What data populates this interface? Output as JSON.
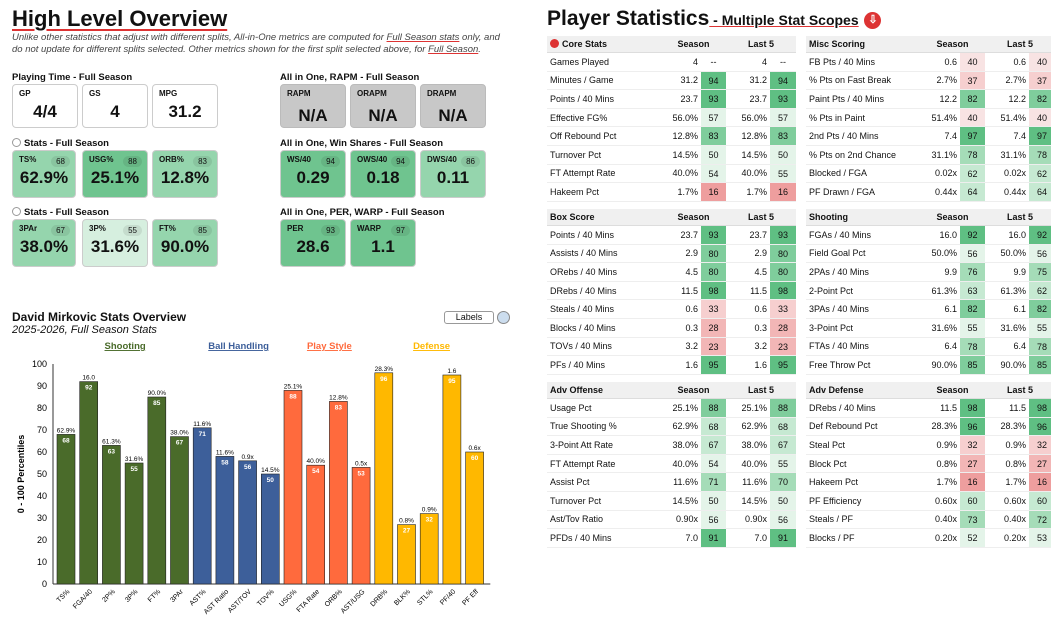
{
  "left": {
    "title": "High Level Overview",
    "note_pre": "Unlike other statistics that adjust with different splits, All-in-One metrics are computed for ",
    "note_link1": "Full Season stats",
    "note_mid": " only, and do not update for different splits selected. Other metrics shown for the first split selected above, for ",
    "note_link2": "Full Season",
    "note_end": "."
  },
  "sections": {
    "playing": "Playing Time - Full Season",
    "stats1": "Stats - Full Season",
    "stats2": "Stats - Full Season",
    "rapm": "All in One, RAPM - Full Season",
    "ws": "All in One, Win Shares - Full Season",
    "per": "All in One, PER, WARP - Full Season"
  },
  "cards": {
    "gp": {
      "label": "GP",
      "value": "4/4"
    },
    "gs": {
      "label": "GS",
      "value": "4"
    },
    "mpg": {
      "label": "MPG",
      "value": "31.2"
    },
    "ts": {
      "label": "TS%",
      "value": "62.9%",
      "pct": "68"
    },
    "usg": {
      "label": "USG%",
      "value": "25.1%",
      "pct": "88"
    },
    "orb": {
      "label": "ORB%",
      "value": "12.8%",
      "pct": "83"
    },
    "tpar": {
      "label": "3PAr",
      "value": "38.0%",
      "pct": "67"
    },
    "tpp": {
      "label": "3P%",
      "value": "31.6%",
      "pct": "55"
    },
    "ftp": {
      "label": "FT%",
      "value": "90.0%",
      "pct": "85"
    },
    "rapm": {
      "label": "RAPM",
      "value": "N/A"
    },
    "orapm": {
      "label": "ORAPM",
      "value": "N/A"
    },
    "drapm": {
      "label": "DRAPM",
      "value": "N/A"
    },
    "ws40": {
      "label": "WS/40",
      "value": "0.29",
      "pct": "94"
    },
    "ows40": {
      "label": "OWS/40",
      "value": "0.18",
      "pct": "94"
    },
    "dws40": {
      "label": "DWS/40",
      "value": "0.11",
      "pct": "86"
    },
    "per": {
      "label": "PER",
      "value": "28.6",
      "pct": "93"
    },
    "warp": {
      "label": "WARP",
      "value": "1.1",
      "pct": "97"
    }
  },
  "chart_ui": {
    "title": "David Mirkovic Stats Overview",
    "subtitle": "2025-2026, Full Season Stats",
    "labels_button": "Labels"
  },
  "chart_data": {
    "type": "bar",
    "ylabel": "0 - 100 Percentiles",
    "ylim": [
      0,
      100
    ],
    "yticks": [
      0,
      10,
      20,
      30,
      40,
      50,
      60,
      70,
      80,
      90,
      100
    ],
    "groups": [
      {
        "name": "Shooting",
        "color": "#4a6b2a"
      },
      {
        "name": "Ball Handling",
        "color": "#3d5f9a"
      },
      {
        "name": "Play Style",
        "color": "#ff6a3d"
      },
      {
        "name": "Defense",
        "color": "#ffb800"
      }
    ],
    "bars": [
      {
        "cat": "TS%",
        "value": 68,
        "label": "62.9%",
        "group": 0
      },
      {
        "cat": "FGA/40",
        "value": 92,
        "label": "16.0",
        "group": 0
      },
      {
        "cat": "2P%",
        "value": 63,
        "label": "61.3%",
        "group": 0
      },
      {
        "cat": "3P%",
        "value": 55,
        "label": "31.6%",
        "group": 0
      },
      {
        "cat": "FT%",
        "value": 85,
        "label": "90.0%",
        "group": 0
      },
      {
        "cat": "3PAr",
        "value": 67,
        "label": "38.0%",
        "group": 0
      },
      {
        "cat": "AST%",
        "value": 71,
        "label": "11.6%",
        "group": 1
      },
      {
        "cat": "AST Ratio",
        "value": 58,
        "label": "11.6%",
        "group": 1
      },
      {
        "cat": "AST/TOV",
        "value": 56,
        "label": "0.9x",
        "group": 1
      },
      {
        "cat": "TOV%",
        "value": 50,
        "label": "14.5%",
        "group": 1
      },
      {
        "cat": "USG%",
        "value": 88,
        "label": "25.1%",
        "group": 2
      },
      {
        "cat": "FTA Rate",
        "value": 54,
        "label": "40.0%",
        "group": 2
      },
      {
        "cat": "ORB%",
        "value": 83,
        "label": "12.8%",
        "group": 2
      },
      {
        "cat": "AST/USG",
        "value": 53,
        "label": "0.5x",
        "group": 2
      },
      {
        "cat": "DRB%",
        "value": 96,
        "label": "28.3%",
        "group": 3
      },
      {
        "cat": "BLK%",
        "value": 27,
        "label": "0.8%",
        "group": 3
      },
      {
        "cat": "STL%",
        "value": 32,
        "label": "0.9%",
        "group": 3
      },
      {
        "cat": "PF/40",
        "value": 95,
        "label": "1.6",
        "group": 3
      },
      {
        "cat": "PF Eff",
        "value": 60,
        "label": "0.6x",
        "group": 3
      }
    ]
  },
  "right": {
    "title": "Player Statistics",
    "subtitle": " - Multiple Stat Scopes",
    "icon": "⇩"
  },
  "tables": [
    {
      "title": "Core Stats",
      "col1": "Season",
      "col2": "Last 5",
      "rows": [
        [
          "Games Played",
          "4",
          "--",
          "4",
          "--"
        ],
        [
          "Minutes / Game",
          "31.2",
          "94",
          "31.2",
          "94"
        ],
        [
          "Points / 40 Mins",
          "23.7",
          "93",
          "23.7",
          "93"
        ],
        [
          "Effective FG%",
          "56.0%",
          "57",
          "56.0%",
          "57"
        ],
        [
          "Off Rebound Pct",
          "12.8%",
          "83",
          "12.8%",
          "83"
        ],
        [
          "Turnover Pct",
          "14.5%",
          "50",
          "14.5%",
          "50"
        ],
        [
          "FT Attempt Rate",
          "40.0%",
          "54",
          "40.0%",
          "55"
        ],
        [
          "Hakeem Pct",
          "1.7%",
          "16",
          "1.7%",
          "16"
        ]
      ]
    },
    {
      "title": "Misc Scoring",
      "col1": "Season",
      "col2": "Last 5",
      "rows": [
        [
          "FB Pts / 40 Mins",
          "0.6",
          "40",
          "0.6",
          "40"
        ],
        [
          "% Pts on Fast Break",
          "2.7%",
          "37",
          "2.7%",
          "37"
        ],
        [
          "Paint Pts / 40 Mins",
          "12.2",
          "82",
          "12.2",
          "82"
        ],
        [
          "% Pts in Paint",
          "51.4%",
          "40",
          "51.4%",
          "40"
        ],
        [
          "2nd Pts / 40 Mins",
          "7.4",
          "97",
          "7.4",
          "97"
        ],
        [
          "% Pts on 2nd Chance",
          "31.1%",
          "78",
          "31.1%",
          "78"
        ],
        [
          "Blocked / FGA",
          "0.02x",
          "62",
          "0.02x",
          "62"
        ],
        [
          "PF Drawn / FGA",
          "0.44x",
          "64",
          "0.44x",
          "64"
        ]
      ]
    },
    {
      "title": "Box Score",
      "col1": "Season",
      "col2": "Last 5",
      "rows": [
        [
          "Points / 40 Mins",
          "23.7",
          "93",
          "23.7",
          "93"
        ],
        [
          "Assists / 40 Mins",
          "2.9",
          "80",
          "2.9",
          "80"
        ],
        [
          "ORebs / 40 Mins",
          "4.5",
          "80",
          "4.5",
          "80"
        ],
        [
          "DRebs / 40 Mins",
          "11.5",
          "98",
          "11.5",
          "98"
        ],
        [
          "Steals / 40 Mins",
          "0.6",
          "33",
          "0.6",
          "33"
        ],
        [
          "Blocks / 40 Mins",
          "0.3",
          "28",
          "0.3",
          "28"
        ],
        [
          "TOVs / 40 Mins",
          "3.2",
          "23",
          "3.2",
          "23"
        ],
        [
          "PFs / 40 Mins",
          "1.6",
          "95",
          "1.6",
          "95"
        ]
      ]
    },
    {
      "title": "Shooting",
      "col1": "Season",
      "col2": "Last 5",
      "rows": [
        [
          "FGAs / 40 Mins",
          "16.0",
          "92",
          "16.0",
          "92"
        ],
        [
          "Field Goal Pct",
          "50.0%",
          "56",
          "50.0%",
          "56"
        ],
        [
          "2PAs / 40 Mins",
          "9.9",
          "76",
          "9.9",
          "75"
        ],
        [
          "2-Point Pct",
          "61.3%",
          "63",
          "61.3%",
          "62"
        ],
        [
          "3PAs / 40 Mins",
          "6.1",
          "82",
          "6.1",
          "82"
        ],
        [
          "3-Point Pct",
          "31.6%",
          "55",
          "31.6%",
          "55"
        ],
        [
          "FTAs / 40 Mins",
          "6.4",
          "78",
          "6.4",
          "78"
        ],
        [
          "Free Throw Pct",
          "90.0%",
          "85",
          "90.0%",
          "85"
        ]
      ]
    },
    {
      "title": "Adv Offense",
      "col1": "Season",
      "col2": "Last 5",
      "rows": [
        [
          "Usage Pct",
          "25.1%",
          "88",
          "25.1%",
          "88"
        ],
        [
          "True Shooting %",
          "62.9%",
          "68",
          "62.9%",
          "68"
        ],
        [
          "3-Point Att Rate",
          "38.0%",
          "67",
          "38.0%",
          "67"
        ],
        [
          "FT Attempt Rate",
          "40.0%",
          "54",
          "40.0%",
          "55"
        ],
        [
          "Assist Pct",
          "11.6%",
          "71",
          "11.6%",
          "70"
        ],
        [
          "Turnover Pct",
          "14.5%",
          "50",
          "14.5%",
          "50"
        ],
        [
          "Ast/Tov Ratio",
          "0.90x",
          "56",
          "0.90x",
          "56"
        ],
        [
          "PFDs / 40 Mins",
          "7.0",
          "91",
          "7.0",
          "91"
        ]
      ]
    },
    {
      "title": "Adv Defense",
      "col1": "Season",
      "col2": "Last 5",
      "rows": [
        [
          "DRebs / 40 Mins",
          "11.5",
          "98",
          "11.5",
          "98"
        ],
        [
          "Def Rebound Pct",
          "28.3%",
          "96",
          "28.3%",
          "96"
        ],
        [
          "Steal Pct",
          "0.9%",
          "32",
          "0.9%",
          "32"
        ],
        [
          "Block Pct",
          "0.8%",
          "27",
          "0.8%",
          "27"
        ],
        [
          "Hakeem Pct",
          "1.7%",
          "16",
          "1.7%",
          "16"
        ],
        [
          "PF Efficiency",
          "0.60x",
          "60",
          "0.60x",
          "60"
        ],
        [
          "Steals / PF",
          "0.40x",
          "73",
          "0.40x",
          "72"
        ],
        [
          "Blocks / PF",
          "0.20x",
          "52",
          "0.20x",
          "53"
        ]
      ]
    }
  ]
}
